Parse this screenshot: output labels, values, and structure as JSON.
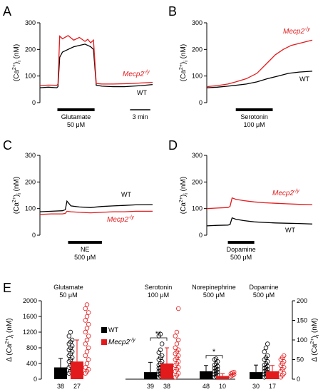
{
  "colors": {
    "wt": "#000000",
    "mecp2": "#e31a1c",
    "axis": "#000000"
  },
  "chart_data": [
    {
      "panel": "A",
      "type": "line",
      "ylabel": "(Ca2+)i (nM)",
      "ylim": [
        0,
        300
      ],
      "yticks": [
        0,
        100,
        200,
        300
      ],
      "xlim": [
        0,
        200
      ],
      "series": [
        {
          "name": "WT",
          "key": "wt",
          "x": [
            0,
            15,
            30,
            32,
            35,
            40,
            50,
            60,
            70,
            80,
            85,
            90,
            95,
            100,
            110,
            130,
            150,
            165,
            180,
            200
          ],
          "y": [
            56,
            58,
            56,
            60,
            170,
            190,
            200,
            210,
            215,
            220,
            215,
            210,
            200,
            65,
            62,
            60,
            60,
            62,
            64,
            68
          ]
        },
        {
          "name": "Mecp2-/y",
          "key": "mecp2",
          "x": [
            0,
            15,
            30,
            32,
            35,
            40,
            50,
            60,
            70,
            80,
            85,
            90,
            95,
            100,
            110,
            130,
            150,
            165,
            180,
            200
          ],
          "y": [
            64,
            66,
            65,
            70,
            250,
            240,
            252,
            235,
            245,
            230,
            238,
            225,
            235,
            72,
            70,
            70,
            71,
            72,
            74,
            76
          ]
        }
      ],
      "stim_label": "Glutamate",
      "stim_conc": "50 μM",
      "stim_x": [
        31,
        97
      ],
      "scale_label": "3 min",
      "labels": {
        "wt": "WT",
        "mecp2_prefix": "Mecp2",
        "mecp2_sup": "-/y"
      }
    },
    {
      "panel": "B",
      "type": "line",
      "ylabel": "(Ca2+)i (nM)",
      "ylim": [
        0,
        300
      ],
      "yticks": [
        0,
        100,
        200,
        300
      ],
      "xlim": [
        0,
        200
      ],
      "series": [
        {
          "name": "WT",
          "key": "wt",
          "x": [
            0,
            20,
            40,
            55,
            75,
            95,
            115,
            135,
            155,
            175,
            200
          ],
          "y": [
            56,
            58,
            62,
            65,
            70,
            78,
            90,
            100,
            110,
            115,
            118
          ]
        },
        {
          "name": "Mecp2-/y",
          "key": "mecp2",
          "x": [
            0,
            20,
            40,
            55,
            75,
            95,
            115,
            130,
            145,
            160,
            180,
            200
          ],
          "y": [
            60,
            64,
            70,
            78,
            90,
            110,
            150,
            180,
            200,
            215,
            225,
            235
          ]
        }
      ],
      "stim_label": "Serotonin",
      "stim_conc": "100 μM",
      "stim_x": [
        55,
        125
      ],
      "labels": {
        "wt": "WT",
        "mecp2_prefix": "Mecp2",
        "mecp2_sup": "-/y"
      }
    },
    {
      "panel": "C",
      "type": "line",
      "ylabel": "(Ca2+)i (nM)",
      "ylim": [
        0,
        300
      ],
      "yticks": [
        0,
        100,
        200,
        300
      ],
      "xlim": [
        0,
        200
      ],
      "series": [
        {
          "name": "WT",
          "key": "wt",
          "x": [
            0,
            20,
            40,
            45,
            48,
            55,
            70,
            90,
            110,
            130,
            150,
            170,
            200
          ],
          "y": [
            88,
            90,
            92,
            96,
            128,
            110,
            106,
            104,
            108,
            110,
            112,
            114,
            115
          ]
        },
        {
          "name": "Mecp2-/y",
          "key": "mecp2",
          "x": [
            0,
            20,
            40,
            45,
            48,
            55,
            70,
            90,
            110,
            130,
            150,
            170,
            200
          ],
          "y": [
            78,
            80,
            80,
            82,
            90,
            88,
            86,
            84,
            86,
            88,
            88,
            90,
            90
          ]
        }
      ],
      "stim_label": "NE",
      "stim_conc": "500 μM",
      "stim_x": [
        50,
        110
      ],
      "labels": {
        "wt": "WT",
        "mecp2_prefix": "Mecp2",
        "mecp2_sup": "-/y"
      }
    },
    {
      "panel": "D",
      "type": "line",
      "ylabel": "(Ca2+)i (nM)",
      "ylim": [
        0,
        300
      ],
      "yticks": [
        0,
        100,
        200,
        300
      ],
      "xlim": [
        0,
        200
      ],
      "series": [
        {
          "name": "WT",
          "key": "wt",
          "x": [
            0,
            20,
            40,
            44,
            48,
            55,
            70,
            90,
            110,
            130,
            150,
            175,
            200
          ],
          "y": [
            35,
            37,
            38,
            40,
            65,
            60,
            55,
            50,
            48,
            46,
            45,
            44,
            42
          ]
        },
        {
          "name": "Mecp2-/y",
          "key": "mecp2",
          "x": [
            0,
            20,
            40,
            44,
            48,
            55,
            70,
            90,
            110,
            130,
            150,
            175,
            200
          ],
          "y": [
            100,
            102,
            104,
            108,
            140,
            135,
            130,
            125,
            122,
            120,
            118,
            116,
            115
          ]
        }
      ],
      "stim_label": "Dopamine",
      "stim_conc": "500 μM",
      "stim_x": [
        40,
        90
      ],
      "labels": {
        "wt": "WT",
        "mecp2_prefix": "Mecp2",
        "mecp2_sup": "-/y"
      }
    },
    {
      "panel": "E",
      "type": "bar",
      "ylabel_left": "Δ (Ca2+)i (nM)",
      "ylabel_right": "Δ (Ca2+)i (nM)",
      "ylim_left": [
        0,
        2000
      ],
      "yticks_left": [
        0,
        400,
        800,
        1200,
        1600,
        2000
      ],
      "ylim_right": [
        0,
        200
      ],
      "yticks_right": [
        0,
        50,
        100,
        150,
        200
      ],
      "legend": {
        "wt": "WT",
        "mecp2_prefix": "Mecp2",
        "mecp2_sup": "-/y",
        "placement": "inside-left"
      },
      "groups": [
        {
          "name": "Glutamate",
          "conc": "50 μM",
          "axis": "left",
          "wt": {
            "mean": 300,
            "err": 230,
            "n": "38",
            "points": [
              150,
              200,
              250,
              300,
              350,
              400,
              450,
              500,
              550,
              600,
              650,
              700,
              750,
              800,
              850,
              900,
              950,
              1000,
              1100,
              1200
            ]
          },
          "mecp2": {
            "mean": 450,
            "err": 550,
            "n": "27",
            "points": [
              150,
              200,
              250,
              300,
              400,
              500,
              600,
              700,
              800,
              900,
              1000,
              1100,
              1200,
              1300,
              1400,
              1500,
              1600,
              1700,
              1800,
              1900
            ]
          },
          "sig": ""
        },
        {
          "name": "Serotonin",
          "conc": "100 μM",
          "axis": "right",
          "wt": {
            "mean": 18,
            "err": 25,
            "n": "39",
            "points": [
              5,
              8,
              10,
              12,
              15,
              18,
              20,
              22,
              25,
              28,
              30,
              33,
              36,
              40,
              45,
              50,
              55,
              60,
              68,
              75,
              90,
              110,
              115
            ]
          },
          "mecp2": {
            "mean": 40,
            "err": 40,
            "n": "38",
            "points": [
              5,
              10,
              15,
              20,
              25,
              30,
              35,
              40,
              45,
              50,
              55,
              60,
              65,
              70,
              75,
              80,
              90,
              100,
              110,
              120,
              180
            ]
          },
          "sig": "**"
        },
        {
          "name": "Norepinephrine",
          "conc": "500 μM",
          "axis": "right",
          "wt": {
            "mean": 20,
            "err": 15,
            "n": "48",
            "points": [
              5,
              8,
              10,
              12,
              15,
              18,
              20,
              22,
              25,
              28,
              30,
              33,
              36,
              40,
              45,
              50,
              52
            ]
          },
          "mecp2": {
            "mean": 8,
            "err": 6,
            "n": "10",
            "points": [
              8,
              10,
              12,
              14,
              16,
              18
            ]
          },
          "sig": "*"
        },
        {
          "name": "Dopamine",
          "conc": "500 μM",
          "axis": "right",
          "wt": {
            "mean": 18,
            "err": 18,
            "n": "30",
            "points": [
              5,
              8,
              10,
              12,
              15,
              18,
              20,
              22,
              25,
              28,
              30,
              33,
              36,
              40,
              45,
              50,
              55,
              60,
              70,
              80,
              90
            ]
          },
          "mecp2": {
            "mean": 20,
            "err": 15,
            "n": "17",
            "points": [
              5,
              10,
              15,
              20,
              25,
              30,
              35,
              40,
              45,
              50,
              55,
              60
            ]
          },
          "sig": ""
        }
      ]
    }
  ],
  "panel_letters": [
    "A",
    "B",
    "C",
    "D",
    "E"
  ]
}
